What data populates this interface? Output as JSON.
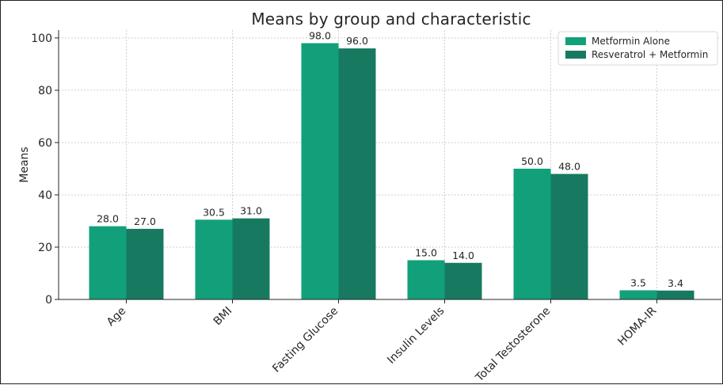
{
  "chart_data": {
    "type": "bar",
    "title": "Means by group and characteristic",
    "xlabel": "",
    "ylabel": "Means",
    "categories": [
      "Age",
      "BMI",
      "Fasting Glucose",
      "Insulin Levels",
      "Total Testosterone",
      "HOMA-IR"
    ],
    "series": [
      {
        "name": "Metformin Alone",
        "values": [
          28.0,
          30.5,
          98.0,
          15.0,
          50.0,
          3.5
        ],
        "color": "#12a07a"
      },
      {
        "name": "Resveratrol + Metformin",
        "values": [
          27.0,
          31.0,
          96.0,
          14.0,
          48.0,
          3.4
        ],
        "color": "#177a60"
      }
    ],
    "yticks": [
      0,
      20,
      40,
      60,
      80,
      100
    ],
    "ylim": [
      0,
      103
    ],
    "grid": true,
    "legend_position": "top-right",
    "value_label_format": "0.0"
  }
}
